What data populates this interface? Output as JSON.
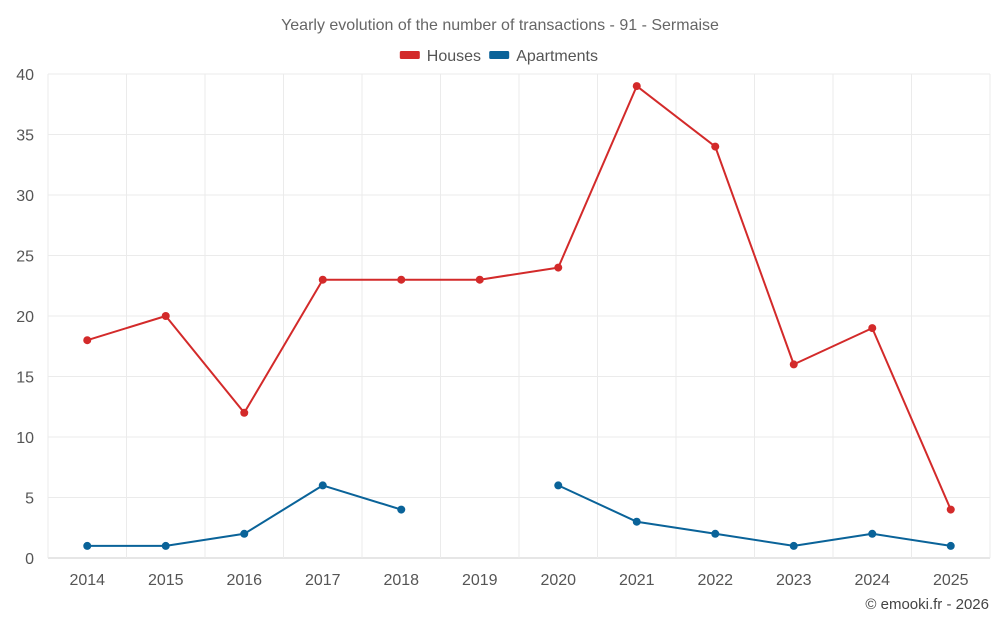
{
  "chart_data": {
    "type": "line",
    "title": "Yearly evolution of the number of transactions - 91 - Sermaise",
    "xlabel": "",
    "ylabel": "",
    "categories": [
      "2014",
      "2015",
      "2016",
      "2017",
      "2018",
      "2019",
      "2020",
      "2021",
      "2022",
      "2023",
      "2024",
      "2025"
    ],
    "ylim": [
      0,
      40
    ],
    "yticks": [
      0,
      5,
      10,
      15,
      20,
      25,
      30,
      35,
      40
    ],
    "grid": true,
    "legend_position": "top-center",
    "series": [
      {
        "name": "Houses",
        "color": "#d32a2a",
        "values": [
          18,
          20,
          12,
          23,
          23,
          23,
          24,
          39,
          34,
          16,
          19,
          4
        ]
      },
      {
        "name": "Apartments",
        "color": "#0a6399",
        "values": [
          1,
          1,
          2,
          6,
          4,
          null,
          6,
          3,
          2,
          1,
          2,
          1
        ]
      }
    ]
  },
  "credit": "© emooki.fr - 2026"
}
